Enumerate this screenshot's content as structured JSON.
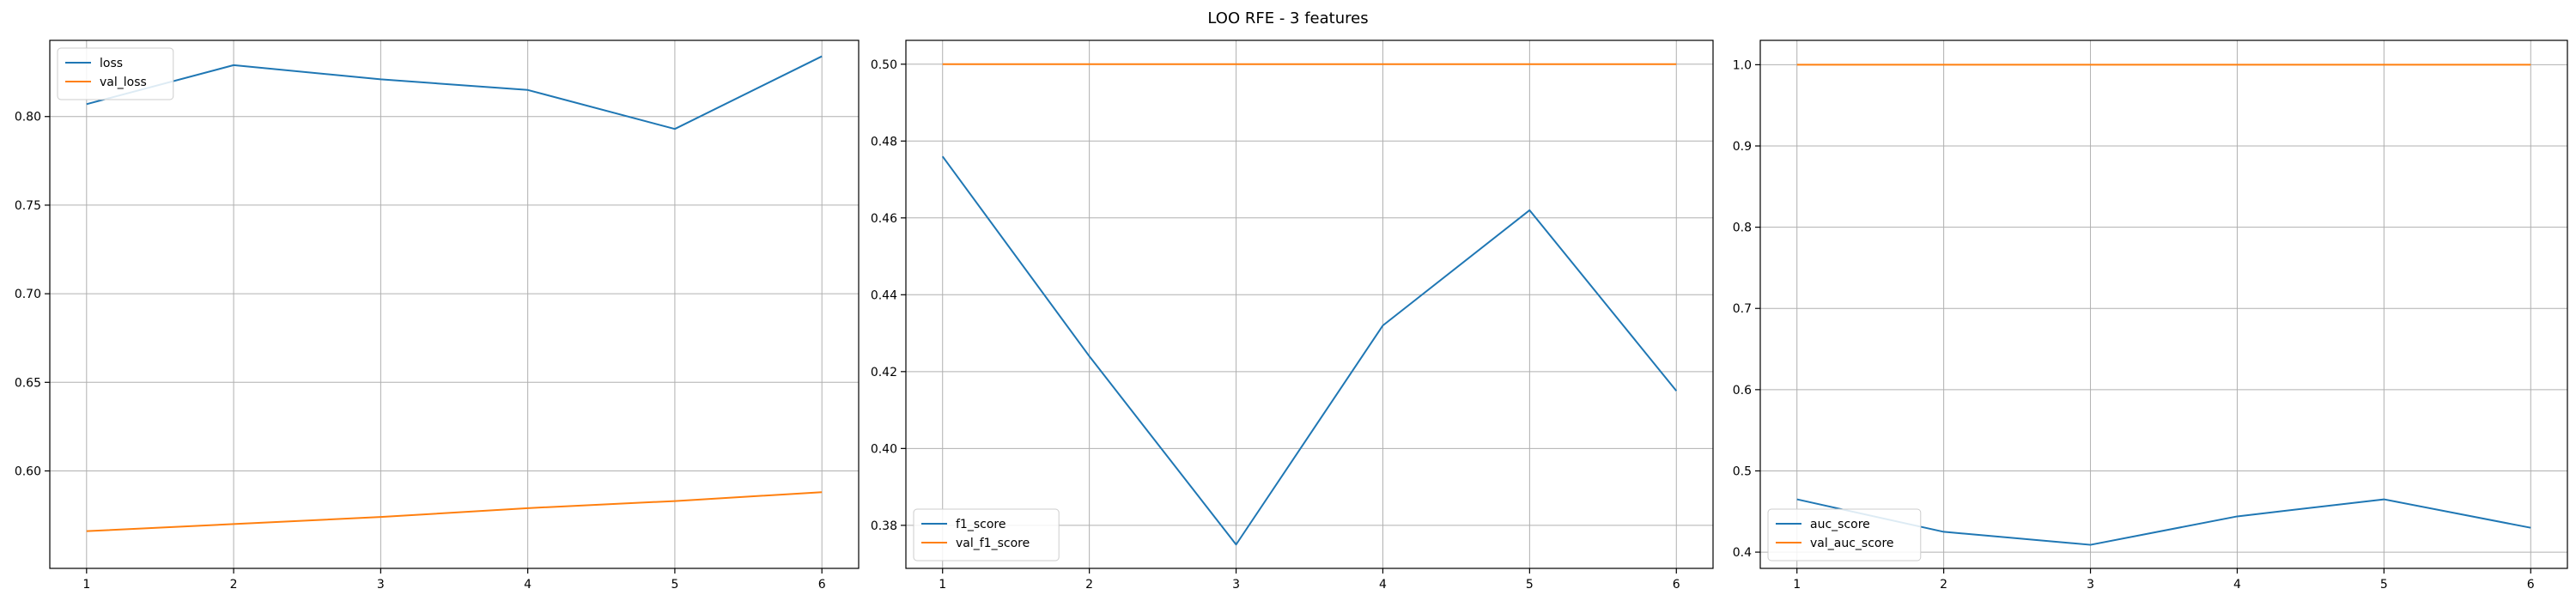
{
  "figure": {
    "title": "LOO RFE - 3 features"
  },
  "chart_data": [
    {
      "type": "line",
      "x": [
        1,
        2,
        3,
        4,
        5,
        6
      ],
      "series": [
        {
          "name": "loss",
          "color": "#1f77b4",
          "values": [
            0.807,
            0.829,
            0.821,
            0.815,
            0.793,
            0.834
          ]
        },
        {
          "name": "val_loss",
          "color": "#ff7f0e",
          "values": [
            0.566,
            0.57,
            0.574,
            0.579,
            0.583,
            0.588
          ]
        }
      ],
      "xlim": [
        0.75,
        6.25
      ],
      "ylim": [
        0.545,
        0.843
      ],
      "xticks": [
        1,
        2,
        3,
        4,
        5,
        6
      ],
      "yticks": [
        0.6,
        0.65,
        0.7,
        0.75,
        0.8
      ],
      "yticklabels": [
        "0.60",
        "0.65",
        "0.70",
        "0.75",
        "0.80"
      ],
      "grid": true,
      "legend": "upper-left"
    },
    {
      "type": "line",
      "x": [
        1,
        2,
        3,
        4,
        5,
        6
      ],
      "series": [
        {
          "name": "f1_score",
          "color": "#1f77b4",
          "values": [
            0.476,
            0.424,
            0.375,
            0.432,
            0.462,
            0.415
          ]
        },
        {
          "name": "val_f1_score",
          "color": "#ff7f0e",
          "values": [
            0.5,
            0.5,
            0.5,
            0.5,
            0.5,
            0.5
          ]
        }
      ],
      "xlim": [
        0.75,
        6.25
      ],
      "ylim": [
        0.3688,
        0.5062
      ],
      "xticks": [
        1,
        2,
        3,
        4,
        5,
        6
      ],
      "yticks": [
        0.38,
        0.4,
        0.42,
        0.44,
        0.46,
        0.48,
        0.5
      ],
      "yticklabels": [
        "0.38",
        "0.40",
        "0.42",
        "0.44",
        "0.46",
        "0.48",
        "0.50"
      ],
      "grid": true,
      "legend": "lower-left"
    },
    {
      "type": "line",
      "x": [
        1,
        2,
        3,
        4,
        5,
        6
      ],
      "series": [
        {
          "name": "auc_score",
          "color": "#1f77b4",
          "values": [
            0.465,
            0.425,
            0.409,
            0.444,
            0.465,
            0.43
          ]
        },
        {
          "name": "val_auc_score",
          "color": "#ff7f0e",
          "values": [
            1.0,
            1.0,
            1.0,
            1.0,
            1.0,
            1.0
          ]
        }
      ],
      "xlim": [
        0.75,
        6.25
      ],
      "ylim": [
        0.38,
        1.03
      ],
      "xticks": [
        1,
        2,
        3,
        4,
        5,
        6
      ],
      "yticks": [
        0.4,
        0.5,
        0.6,
        0.7,
        0.8,
        0.9,
        1.0
      ],
      "yticklabels": [
        "0.4",
        "0.5",
        "0.6",
        "0.7",
        "0.8",
        "0.9",
        "1.0"
      ],
      "grid": true,
      "legend": "lower-left"
    }
  ]
}
